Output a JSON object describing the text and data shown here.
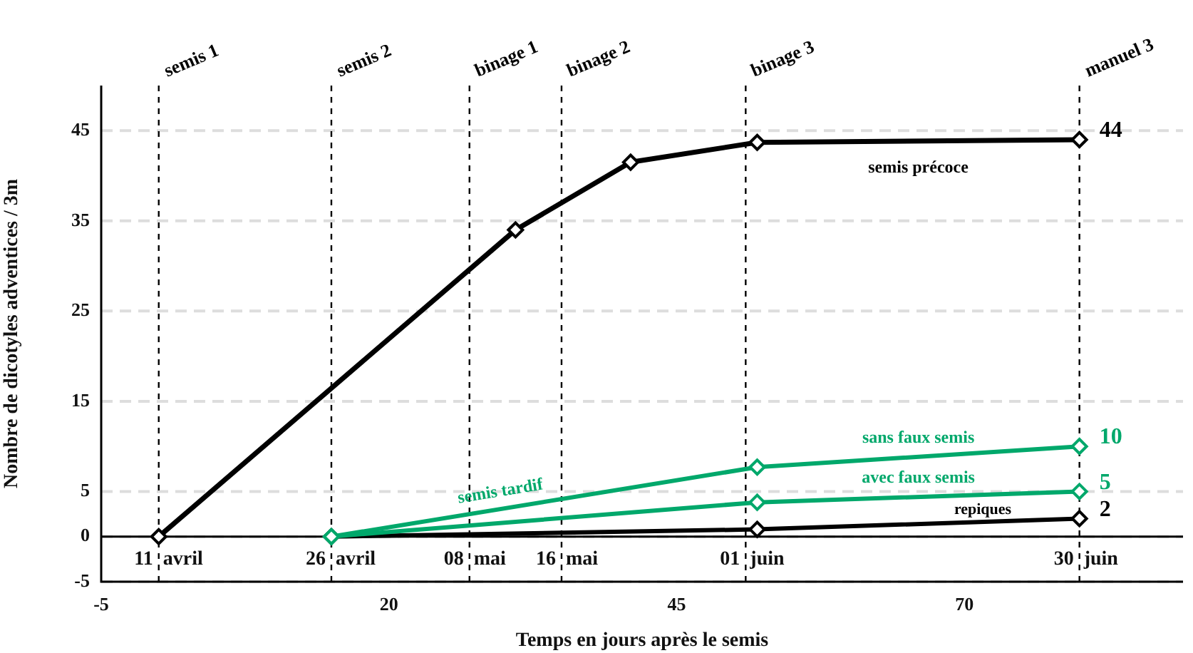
{
  "chart_data": {
    "type": "line",
    "xlabel": "Temps en jours après le semis",
    "ylabel": "Nombre de dicotyles adventices / 3m",
    "xlim": [
      -5,
      89
    ],
    "xticks": [
      -5,
      20,
      45,
      70
    ],
    "ylim": [
      -5,
      50
    ],
    "yticks": [
      -5,
      0,
      5,
      15,
      25,
      35,
      45
    ],
    "grid": "y",
    "legend": false,
    "marker": "diamond",
    "line_style": "solid",
    "series": [
      {
        "name": "semis précoce",
        "color": "#000000",
        "x": [
          0,
          31,
          41,
          52,
          80
        ],
        "values": [
          0,
          34,
          41.5,
          43.7,
          44
        ],
        "value_labels": [
          null,
          null,
          null,
          null,
          "44"
        ]
      },
      {
        "name": "sans faux semis",
        "color": "#00a86b",
        "x": [
          15,
          52,
          80
        ],
        "values": [
          0,
          7.7,
          10
        ],
        "value_labels": [
          null,
          null,
          "10"
        ]
      },
      {
        "name": "avec faux semis",
        "color": "#00a86b",
        "x": [
          15,
          52,
          80
        ],
        "values": [
          0,
          3.8,
          5
        ],
        "value_labels": [
          null,
          null,
          "5"
        ]
      },
      {
        "name": "repiques",
        "color": "#000000",
        "x": [
          15,
          52,
          80
        ],
        "values": [
          0,
          0.8,
          2
        ],
        "value_labels": [
          null,
          null,
          "2"
        ]
      }
    ],
    "ref_lines": [
      {
        "axis": "y",
        "value": 0,
        "label": null,
        "line_style": "solid"
      },
      {
        "axis": "x",
        "value": 0,
        "label": "semis 1",
        "line_style": "dashed"
      },
      {
        "axis": "x",
        "value": 15,
        "label": "semis 2",
        "line_style": "dashed"
      },
      {
        "axis": "x",
        "value": 27,
        "label": "binage 1",
        "line_style": "dashed"
      },
      {
        "axis": "x",
        "value": 35,
        "label": "binage 2",
        "line_style": "dashed"
      },
      {
        "axis": "x",
        "value": 51,
        "label": "binage 3",
        "line_style": "dashed"
      },
      {
        "axis": "x",
        "value": 80,
        "label": "manuel 3",
        "line_style": "dashed"
      }
    ],
    "annotations": [
      "semis tardif",
      {
        "text": "11 avril",
        "x": 0,
        "y": -2.5
      },
      {
        "text": "26 avril",
        "x": 15,
        "y": -2.5
      },
      {
        "text": "08 mai",
        "x": 27,
        "y": -2.5
      },
      {
        "text": "16 mai",
        "x": 35,
        "y": -2.5
      },
      {
        "text": "01 juin",
        "x": 51,
        "y": -2.5
      },
      {
        "text": "30 juin",
        "x": 80,
        "y": -2.5
      }
    ]
  }
}
